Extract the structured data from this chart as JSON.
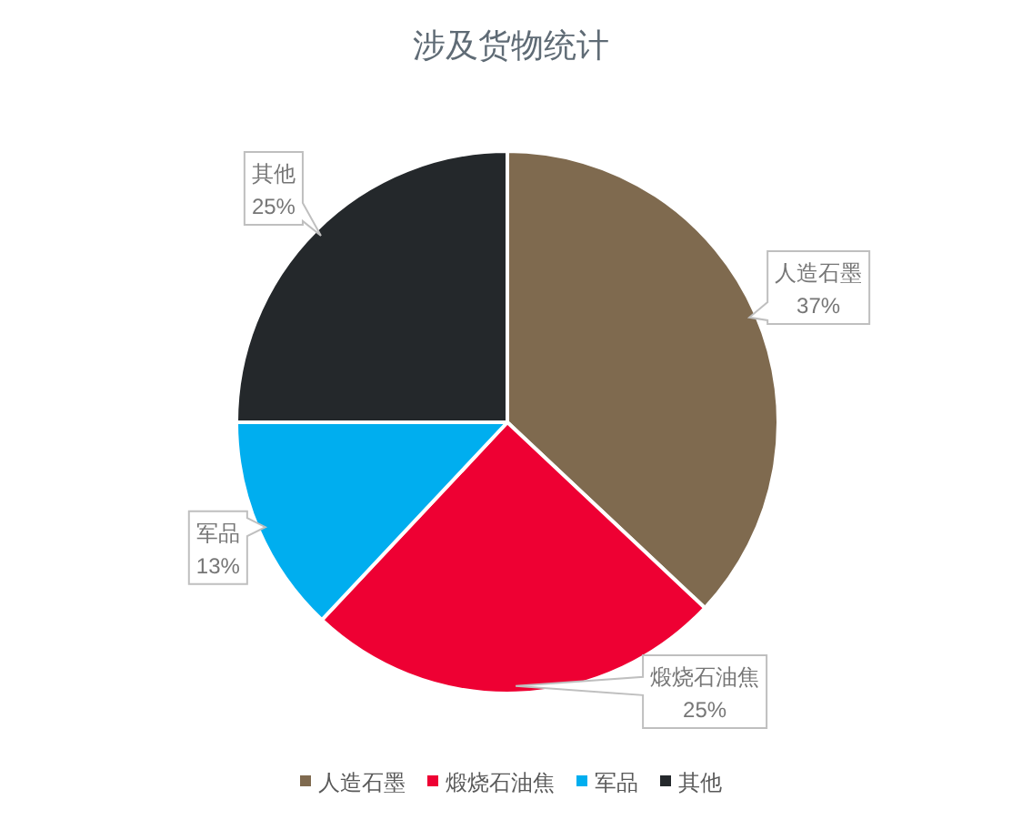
{
  "chart_data": {
    "type": "pie",
    "title": "涉及货物统计",
    "categories": [
      "人造石墨",
      "煅烧石油焦",
      "军品",
      "其他"
    ],
    "values": [
      37,
      25,
      13,
      25
    ],
    "value_labels": [
      "37%",
      "25%",
      "13%",
      "25%"
    ],
    "colors": [
      "#7f6a4f",
      "#ee0033",
      "#00aeef",
      "#24282b"
    ],
    "legend": "bottom"
  }
}
